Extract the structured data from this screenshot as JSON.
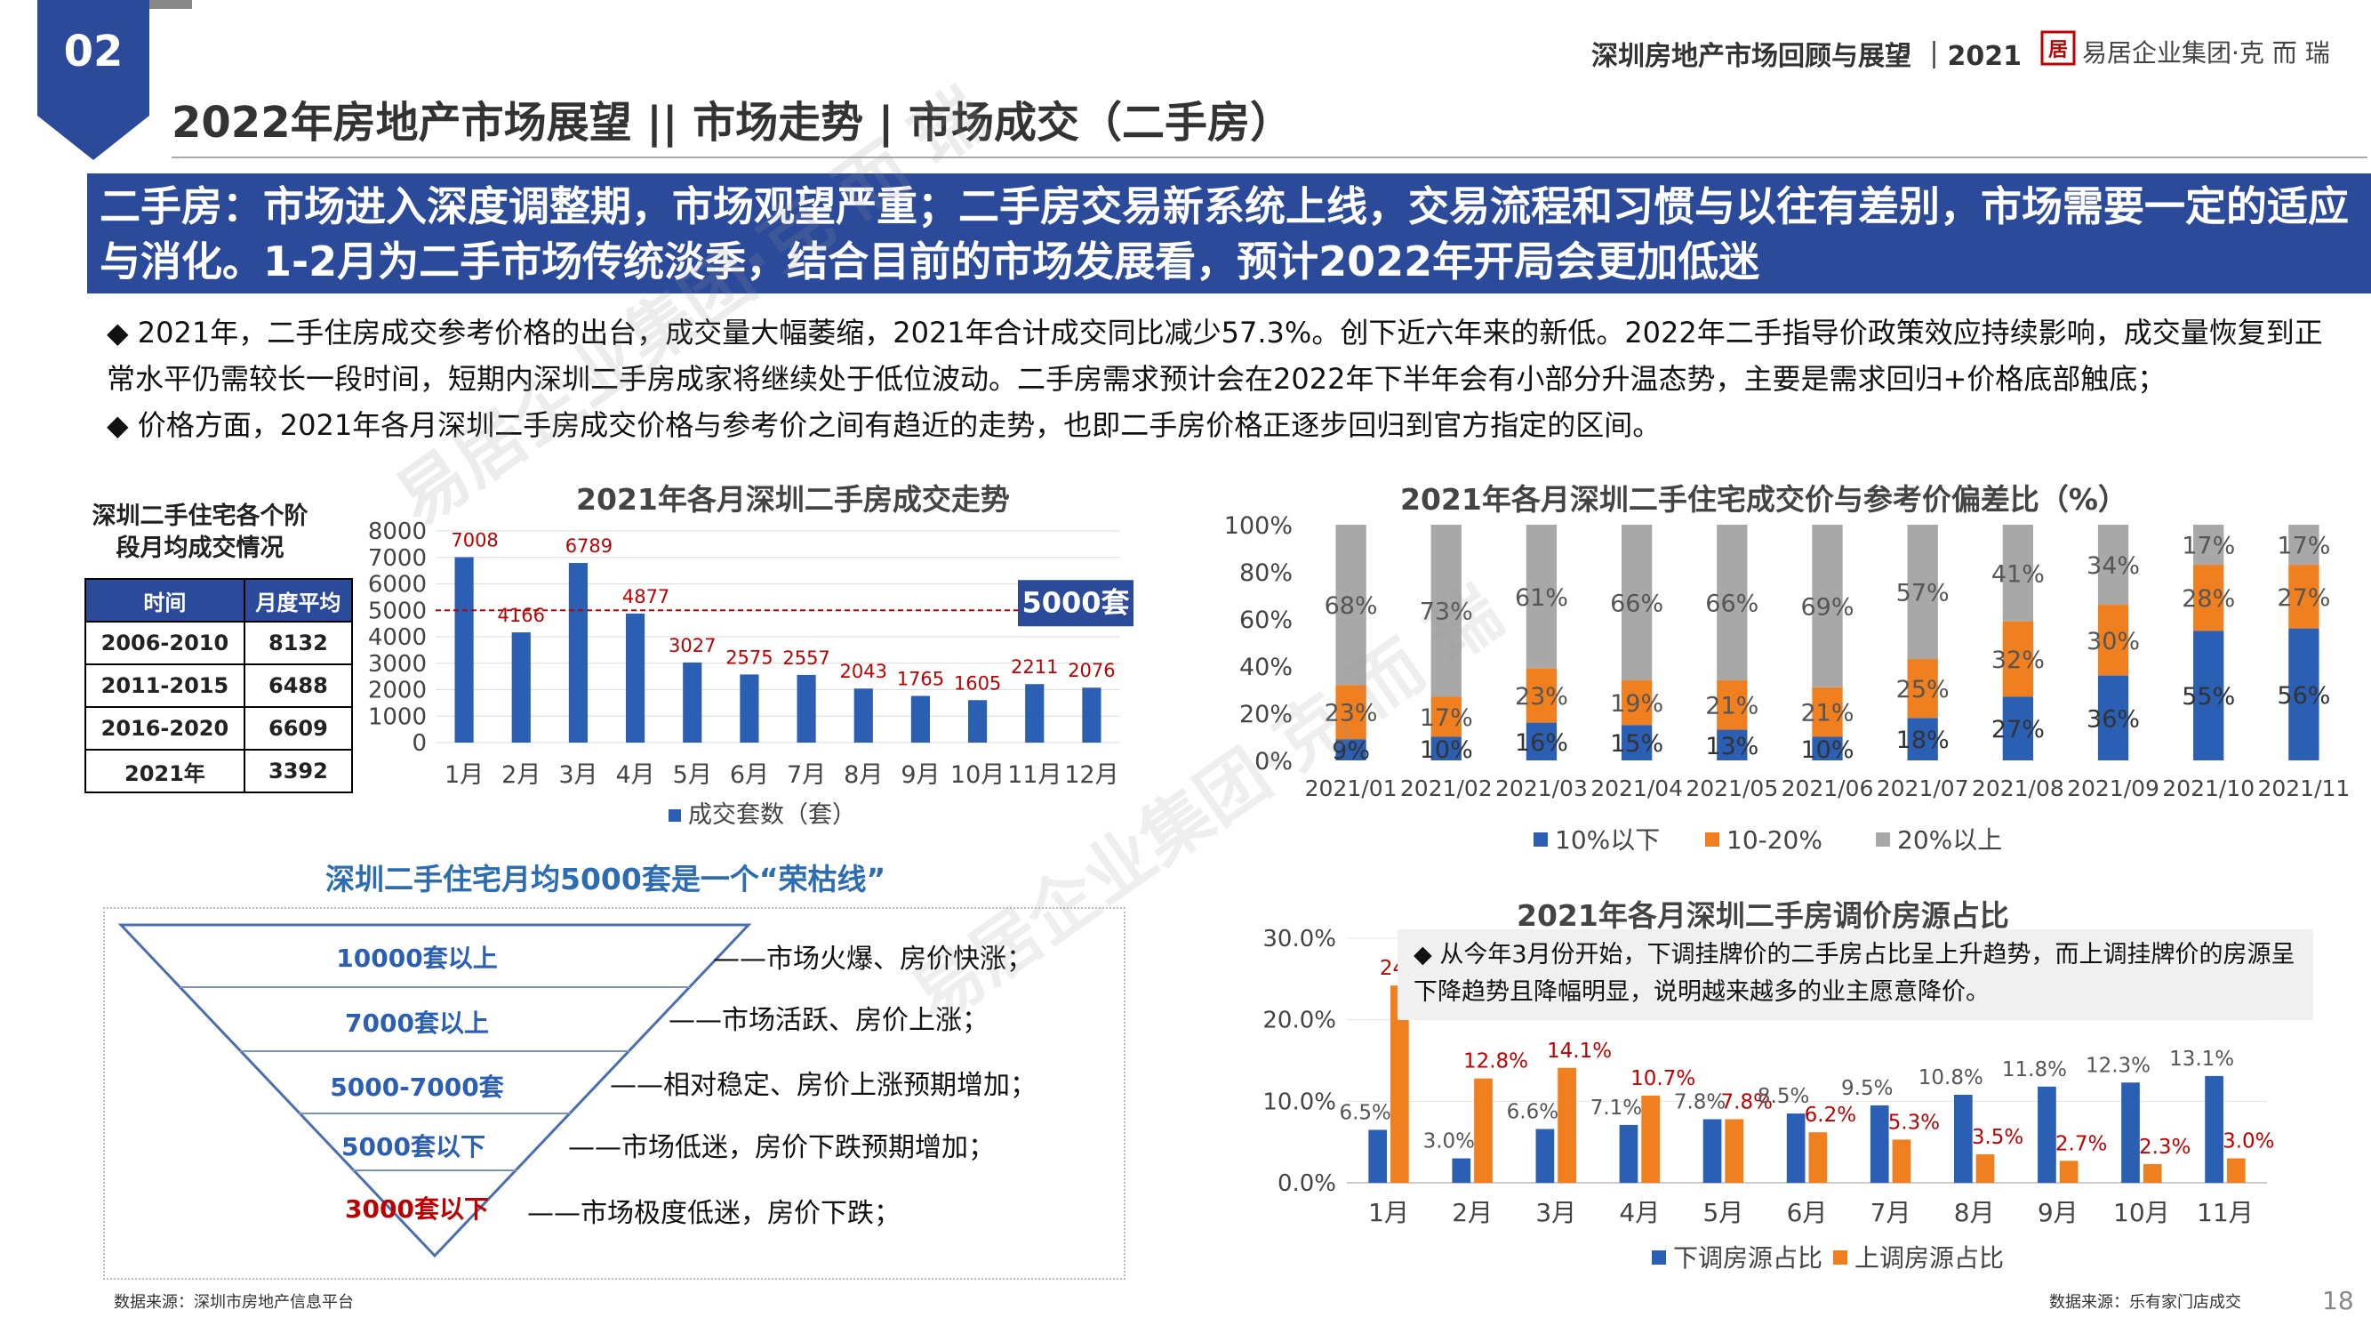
{
  "header": {
    "section_number": "02",
    "page_title": "2022年房地产市场展望 || 市场走势 | 市场成交（二手房）",
    "report_title": "深圳房地产市场回顾与展望 ｜2021",
    "brand": "易居企业集团·克 而 瑞",
    "logo_icon": "eju-logo-icon"
  },
  "banner": {
    "text": "二手房：市场进入深度调整期，市场观望严重；二手房交易新系统上线，交易流程和习惯与以往有差别，市场需要一定的适应与消化。1-2月为二手市场传统淡季，结合目前的市场发展看，预计2022年开局会更加低迷",
    "color": "#2b4a9a"
  },
  "bullets": [
    "◆ 2021年，二手住房成交参考价格的出台，成交量大幅萎缩，2021年合计成交同比减少57.3%。创下近六年来的新低。2022年二手指导价政策效应持续影响，成交量恢复到正常水平仍需较长一段时间，短期内深圳二手房成家将继续处于低位波动。二手房需求预计会在2022年下半年会有小部分升温态势，主要是需求回归+价格底部触底；",
    "◆ 价格方面，2021年各月深圳二手房成交价格与参考价之间有趋近的走势，也即二手房价格正逐步回归到官方指定的区间。"
  ],
  "watermark": "易居企业集团·克 而 瑞",
  "avg_table": {
    "title": "深圳二手住宅各个阶段月均成交情况",
    "headers": [
      "时间",
      "月度平均"
    ],
    "rows": [
      [
        "2006-2010",
        "8132"
      ],
      [
        "2011-2015",
        "6488"
      ],
      [
        "2016-2020",
        "6609"
      ],
      [
        "2021年",
        "3392"
      ]
    ]
  },
  "funnel": {
    "title": "深圳二手住宅月均5000套是一个“荣枯线”",
    "levels": [
      {
        "label": "10000套以上",
        "desc": "——市场火爆、房价快涨；"
      },
      {
        "label": "7000套以上",
        "desc": "——市场活跃、房价上涨；"
      },
      {
        "label": "5000-7000套",
        "desc": "——相对稳定、房价上涨预期增加；"
      },
      {
        "label": "5000套以下",
        "desc": "——市场低迷，房价下跌预期增加；"
      },
      {
        "label": "3000套以下",
        "desc": "——市场极度低迷，房价下跌；"
      }
    ]
  },
  "note": "◆ 从今年3月份开始，下调挂牌价的二手房占比呈上升趋势，而上调挂牌价的房源呈下降趋势且降幅明显，说明越来越多的业主愿意降价。",
  "sources": {
    "left": "数据来源：深圳市房地产信息平台",
    "right": "数据来源：乐有家门店成交"
  },
  "page_number": "18",
  "colors": {
    "blue": "#2b5fb4",
    "orange": "#f07f1f",
    "gray": "#a8a8a8",
    "red": "#c00000",
    "navy": "#2b4a9a"
  },
  "chart_data": [
    {
      "type": "bar",
      "title": "2021年各月深圳二手房成交走势",
      "categories": [
        "1月",
        "2月",
        "3月",
        "4月",
        "5月",
        "6月",
        "7月",
        "8月",
        "9月",
        "10月",
        "11月",
        "12月"
      ],
      "series": [
        {
          "name": "成交套数（套）",
          "values": [
            7008,
            4166,
            6789,
            4877,
            3027,
            2575,
            2557,
            2043,
            1765,
            1605,
            2211,
            2076
          ]
        }
      ],
      "ylim": [
        0,
        8000
      ],
      "yticks": [
        0,
        1000,
        2000,
        3000,
        4000,
        5000,
        6000,
        7000,
        8000
      ],
      "reference_line": {
        "value": 5000,
        "label": "5000套"
      },
      "legend": "bottom"
    },
    {
      "type": "bar",
      "stacked": true,
      "title": "2021年各月深圳二手住宅成交价与参考价偏差比（%）",
      "categories": [
        "2021/01",
        "2021/02",
        "2021/03",
        "2021/04",
        "2021/05",
        "2021/06",
        "2021/07",
        "2021/08",
        "2021/09",
        "2021/10",
        "2021/11"
      ],
      "series": [
        {
          "name": "10%以下",
          "values": [
            9,
            10,
            16,
            15,
            13,
            10,
            18,
            27,
            36,
            55,
            56
          ]
        },
        {
          "name": "10-20%",
          "values": [
            23,
            17,
            23,
            19,
            21,
            21,
            25,
            32,
            30,
            28,
            27
          ]
        },
        {
          "name": "20%以上",
          "values": [
            68,
            73,
            61,
            66,
            66,
            69,
            57,
            41,
            34,
            17,
            17
          ]
        }
      ],
      "yticks": [
        "0%",
        "20%",
        "40%",
        "60%",
        "80%",
        "100%"
      ],
      "ylim": [
        0,
        100
      ],
      "legend": "bottom"
    },
    {
      "type": "bar",
      "title": "2021年各月深圳二手房调价房源占比",
      "categories": [
        "1月",
        "2月",
        "3月",
        "4月",
        "5月",
        "6月",
        "7月",
        "8月",
        "9月",
        "10月",
        "11月"
      ],
      "series": [
        {
          "name": "下调房源占比",
          "values": [
            6.5,
            3.0,
            6.6,
            7.1,
            7.8,
            8.5,
            9.5,
            10.8,
            11.8,
            12.3,
            13.1
          ]
        },
        {
          "name": "上调房源占比",
          "values": [
            24.2,
            12.8,
            14.1,
            10.7,
            7.8,
            6.2,
            5.3,
            3.5,
            2.7,
            2.3,
            3.0
          ]
        }
      ],
      "ylim": [
        0,
        30
      ],
      "yticks": [
        "0.0%",
        "10.0%",
        "20.0%",
        "30.0%"
      ],
      "legend": "bottom"
    }
  ]
}
